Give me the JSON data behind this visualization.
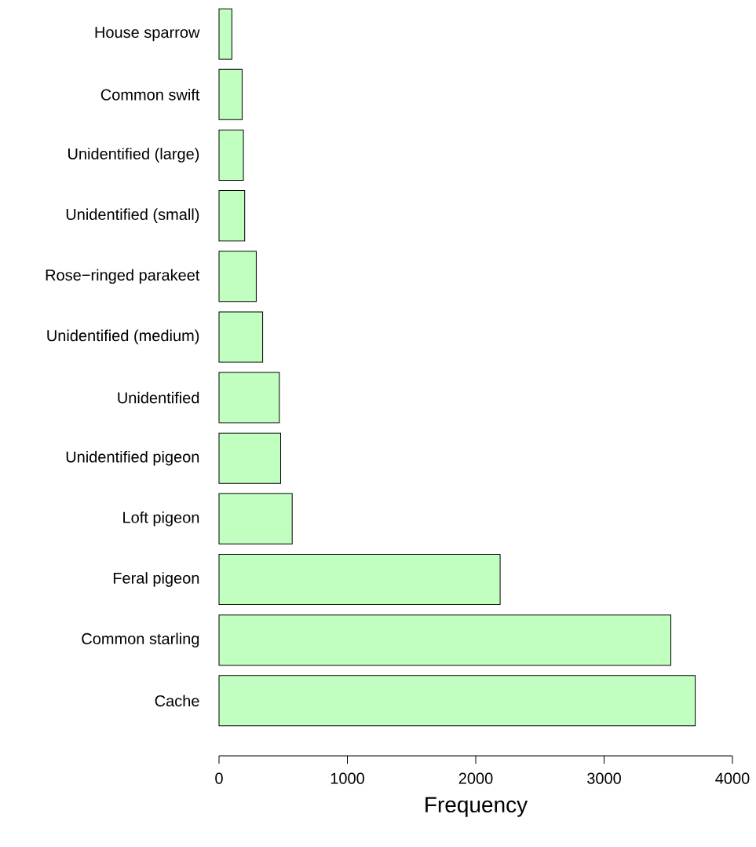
{
  "chart_data": {
    "type": "bar",
    "orientation": "horizontal",
    "xlabel": "Frequency",
    "categories": [
      "House sparrow",
      "Common swift",
      "Unidentified (large)",
      "Unidentified (small)",
      "Rose−ringed parakeet",
      "Unidentified (medium)",
      "Unidentified",
      "Unidentified pigeon",
      "Loft pigeon",
      "Feral pigeon",
      "Common starling",
      "Cache"
    ],
    "values": [
      100,
      180,
      190,
      200,
      290,
      340,
      470,
      480,
      570,
      2190,
      3520,
      3710
    ],
    "color": "#c1ffc1",
    "xlim": [
      0,
      4000
    ],
    "xticks": [
      0,
      1000,
      2000,
      3000,
      4000
    ]
  }
}
